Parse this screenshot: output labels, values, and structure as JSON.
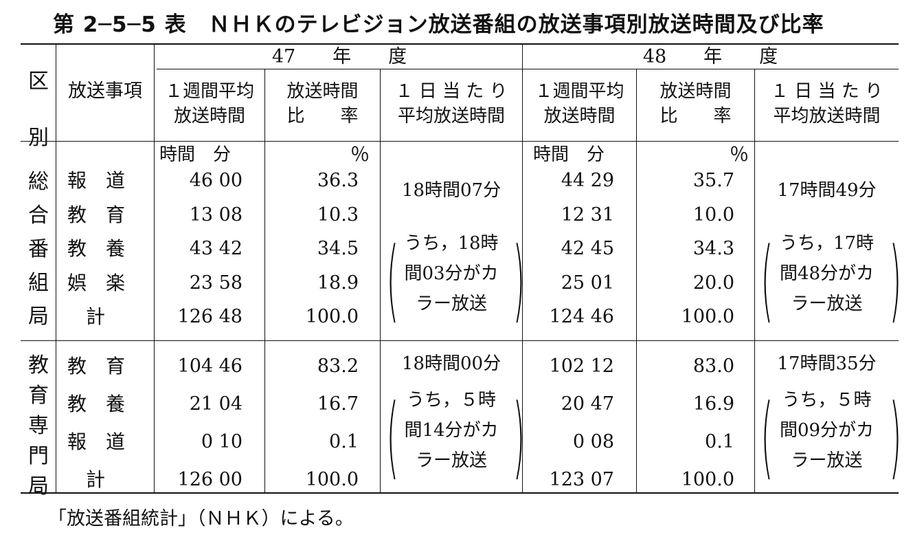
{
  "title": "第 2─5─5 表　ＮＨＫのテレビジョン放送番組の放送事項別放送時間及び比率",
  "header": {
    "kubun": "区\n別",
    "jikou": "放送事項",
    "year1": "47　　年　　度",
    "year2": "48　　年　　度",
    "col_weekly_l1": "１週間平均",
    "col_weekly_l2": "放送時間",
    "col_ratio_l1": "放送時間",
    "col_ratio_l2": "比　　率",
    "col_daily_l1": "１ 日 当 た り",
    "col_daily_l2": "平均放送時間"
  },
  "units": {
    "time": "時間　分",
    "percent": "％"
  },
  "sections": [
    {
      "name": "総合番組局",
      "rows": [
        {
          "item": "報　道",
          "w47": "46 00",
          "r47": "36.3",
          "w48": "44 29",
          "r48": "35.7"
        },
        {
          "item": "教　育",
          "w47": "13 08",
          "r47": "10.3",
          "w48": "12 31",
          "r48": "10.0"
        },
        {
          "item": "教　養",
          "w47": "43 42",
          "r47": "34.5",
          "w48": "42 45",
          "r48": "34.3"
        },
        {
          "item": "娯　楽",
          "w47": "23 58",
          "r47": "18.9",
          "w48": "25 01",
          "r48": "20.0"
        },
        {
          "item": "計",
          "w47": "126 48",
          "r47": "100.0",
          "w48": "124 46",
          "r48": "100.0"
        }
      ],
      "daily47": "18時間07分",
      "note47": [
        "うち，18時",
        "間03分がカ",
        "ラー放送"
      ],
      "daily48": "17時間49分",
      "note48": [
        "うち，17時",
        "間48分がカ",
        "ラー放送"
      ]
    },
    {
      "name": "教育専門局",
      "rows": [
        {
          "item": "教　育",
          "w47": "104 46",
          "r47": "83.2",
          "w48": "102 12",
          "r48": "83.0"
        },
        {
          "item": "教　養",
          "w47": "21 04",
          "r47": "16.7",
          "w48": "20 47",
          "r48": "16.9"
        },
        {
          "item": "報　道",
          "w47": "0 10",
          "r47": "0.1",
          "w48": "0 08",
          "r48": "0.1"
        },
        {
          "item": "計",
          "w47": "126 00",
          "r47": "100.0",
          "w48": "123 07",
          "r48": "100.0"
        }
      ],
      "daily47": "18時間00分",
      "note47": [
        "うち，５時",
        "間14分がカ",
        "ラー放送"
      ],
      "daily48": "17時間35分",
      "note48": [
        "うち，５時",
        "間09分がカ",
        "ラー放送"
      ]
    }
  ],
  "source": "「放送番組統計」（ＮＨＫ）による。"
}
